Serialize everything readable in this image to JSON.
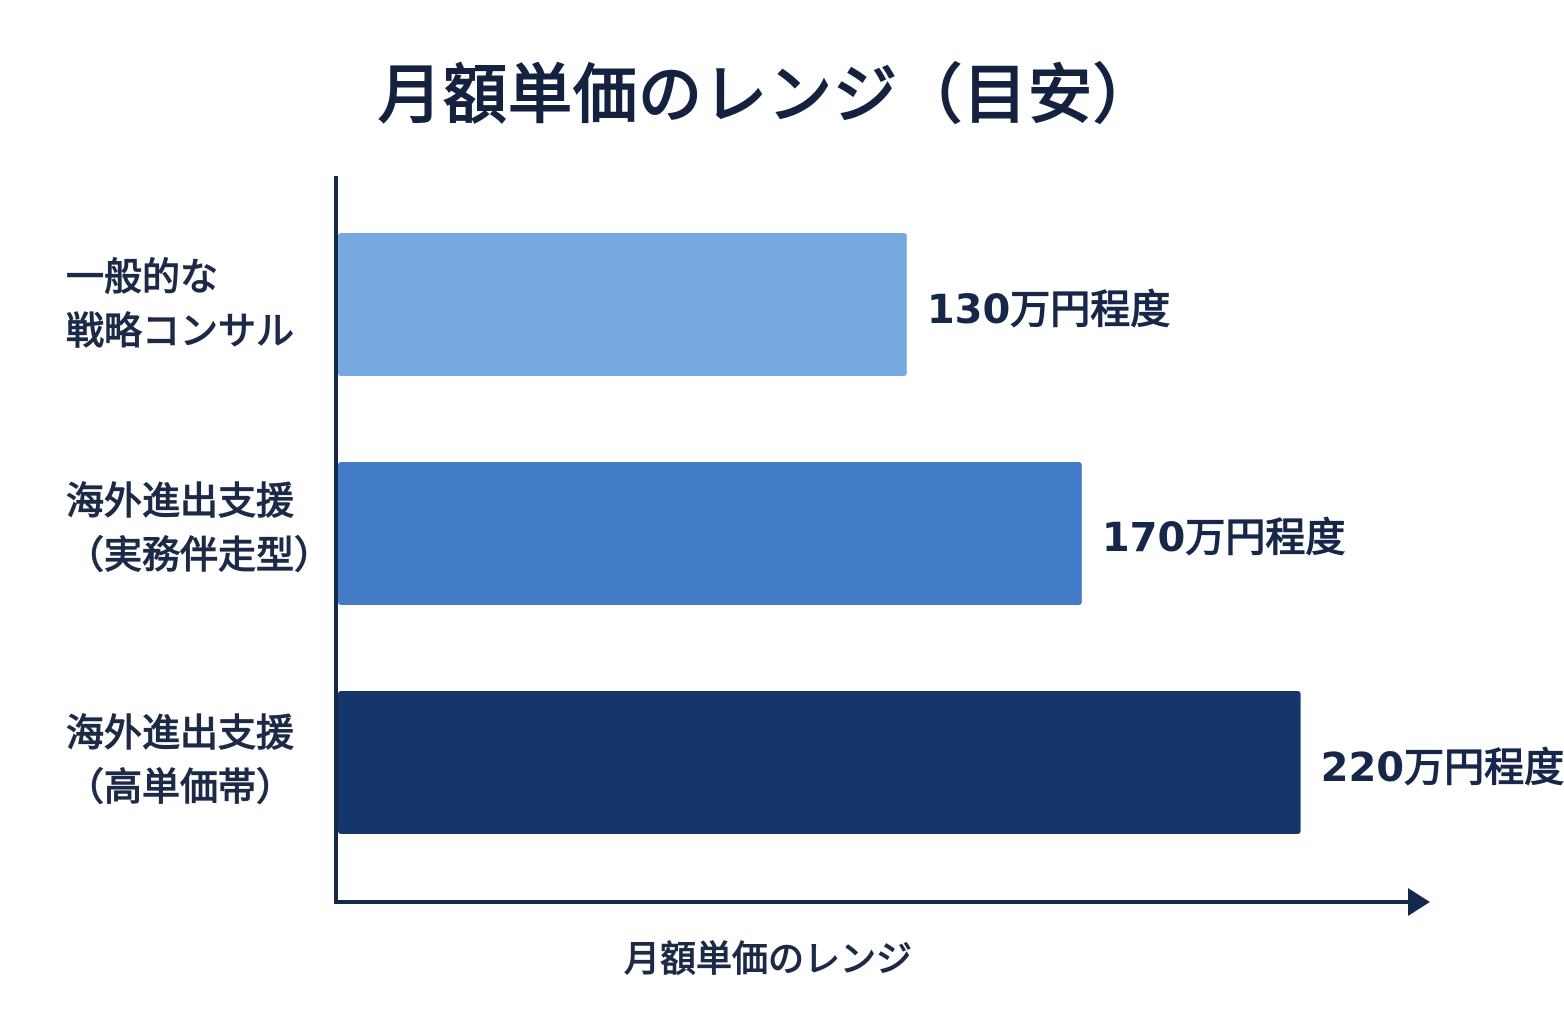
{
  "chart_data": {
    "type": "bar",
    "orientation": "horizontal",
    "title": "月額単価のレンジ（目安）",
    "xlabel": "月額単価のレンジ",
    "ylabel": "",
    "categories": [
      [
        "一般的な",
        "戦略コンサル"
      ],
      [
        "海外進出支援",
        "（実務伴走型）"
      ],
      [
        "海外進出支援",
        "（高単価帯）"
      ]
    ],
    "values": [
      130,
      170,
      220
    ],
    "unit": "万円",
    "data_labels": [
      "130万円程度",
      "170万円程度",
      "220万円程度"
    ],
    "colors": [
      "#78a8e0",
      "#437cc6",
      "#14366a"
    ],
    "axis_color": "#14284d",
    "xlim": [
      0,
      245
    ],
    "grid": false,
    "legend": "none"
  }
}
